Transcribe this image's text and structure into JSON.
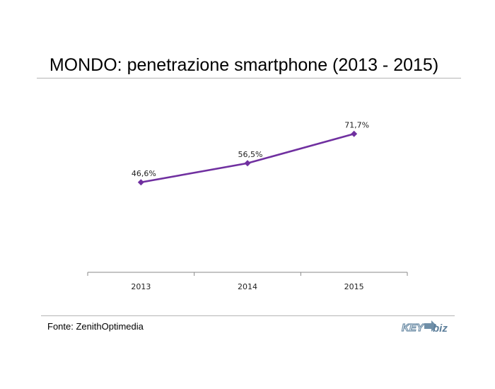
{
  "header": {
    "title": "MONDO: penetrazione smartphone (2013 - 2015)"
  },
  "footer": {
    "source": "Fonte: ZenithOptimedia",
    "logo_text": "KEY4biz"
  },
  "colors": {
    "series_line": "#7030a0",
    "axis": "#888888",
    "rule": "#b4b4b4"
  },
  "chart_data": {
    "type": "line",
    "title": "MONDO: penetrazione smartphone (2013 - 2015)",
    "categories": [
      "2013",
      "2014",
      "2015"
    ],
    "series": [
      {
        "values": [
          46.6,
          56.5,
          71.7
        ],
        "labels": [
          "46,6%",
          "56,5%",
          "71,7%"
        ]
      }
    ],
    "ylim": [
      0,
      100
    ],
    "grid": false,
    "legend": "none",
    "marker": "diamond"
  }
}
